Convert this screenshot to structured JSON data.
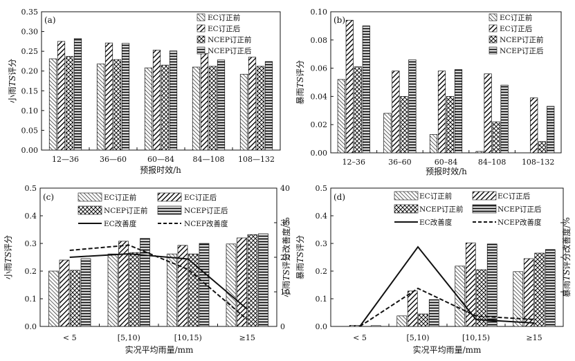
{
  "colors": {
    "ink": "#111111",
    "background": "#ffffff"
  },
  "chart_data": [
    {
      "panel": "(a)",
      "type": "bar",
      "ylabel_parts": [
        "小雨",
        "TS",
        "评分"
      ],
      "xlabel": "预报时效/h",
      "categories": [
        "12—36",
        "36—60",
        "60—84",
        "84—108",
        "108—132"
      ],
      "ylim": [
        0,
        0.35
      ],
      "yticks": [
        "0.00",
        "0.05",
        "0.10",
        "0.15",
        "0.20",
        "0.25",
        "0.30",
        "0.35"
      ],
      "series": [
        {
          "name": "EC订正前",
          "pattern": "bs",
          "values": [
            0.231,
            0.218,
            0.208,
            0.21,
            0.192
          ]
        },
        {
          "name": "EC订正后",
          "pattern": "fs",
          "values": [
            0.275,
            0.271,
            0.253,
            0.244,
            0.235
          ]
        },
        {
          "name": "NCEP订正前",
          "pattern": "xh",
          "values": [
            0.237,
            0.229,
            0.215,
            0.212,
            0.212
          ]
        },
        {
          "name": "NCEP订正后",
          "pattern": "hz",
          "values": [
            0.282,
            0.27,
            0.251,
            0.228,
            0.224
          ]
        }
      ],
      "legend_position": "top-right"
    },
    {
      "panel": "(b)",
      "type": "bar",
      "ylabel_parts": [
        "暴雨",
        "TS",
        "评分"
      ],
      "xlabel": "预报时效/h",
      "categories": [
        "12–36",
        "36–60",
        "60–84",
        "84–108",
        "108–132"
      ],
      "ylim": [
        0,
        0.1
      ],
      "yticks": [
        "0.00",
        "0.02",
        "0.04",
        "0.06",
        "0.08",
        "0.10"
      ],
      "series": [
        {
          "name": "EC订正前",
          "pattern": "bs",
          "values": [
            0.052,
            0.028,
            0.013,
            0.001,
            0.0
          ]
        },
        {
          "name": "EC订正后",
          "pattern": "fs",
          "values": [
            0.094,
            0.058,
            0.058,
            0.056,
            0.039
          ]
        },
        {
          "name": "NCEP订正前",
          "pattern": "xh",
          "values": [
            0.061,
            0.04,
            0.04,
            0.022,
            0.008
          ]
        },
        {
          "name": "NCEP订正后",
          "pattern": "hz",
          "values": [
            0.09,
            0.066,
            0.059,
            0.048,
            0.033
          ]
        }
      ],
      "legend_position": "top-right"
    },
    {
      "panel": "(c)",
      "type": "bar+line",
      "ylabel_parts": [
        "小雨",
        "TS",
        "评分"
      ],
      "y2label_parts": [
        "小雨",
        "TS",
        "评分改善度/%"
      ],
      "xlabel": "实况平均雨量/mm",
      "categories": [
        "< 5",
        "[5,10)",
        "[10,15)",
        "≥15"
      ],
      "ylim": [
        0,
        0.5
      ],
      "yticks": [
        "0.0",
        "0.1",
        "0.2",
        "0.3",
        "0.4",
        "0.5"
      ],
      "y2lim": [
        0,
        40
      ],
      "y2ticks": [
        "0",
        "10",
        "20",
        "30",
        "40"
      ],
      "series": [
        {
          "name": "EC订正前",
          "pattern": "bs",
          "values": [
            0.2,
            0.262,
            0.262,
            0.298
          ]
        },
        {
          "name": "EC订正后",
          "pattern": "fs",
          "values": [
            0.24,
            0.308,
            0.293,
            0.32
          ]
        },
        {
          "name": "NCEP订正前",
          "pattern": "xh",
          "values": [
            0.203,
            0.267,
            0.262,
            0.332
          ]
        },
        {
          "name": "NCEP订正后",
          "pattern": "hz",
          "values": [
            0.245,
            0.318,
            0.3,
            0.335
          ]
        }
      ],
      "lines": [
        {
          "name": "EC改善度",
          "style": "solid",
          "values": [
            20,
            21,
            19.5,
            5
          ]
        },
        {
          "name": "NCEP改善度",
          "style": "dashed",
          "values": [
            22,
            23.5,
            16.5,
            2
          ]
        }
      ],
      "legend_position": "top"
    },
    {
      "panel": "(d)",
      "type": "bar+line",
      "ylabel_parts": [
        "暴雨",
        "TS",
        "评分"
      ],
      "y2label_parts": [
        "暴雨",
        "TS",
        "评分改善度/%"
      ],
      "xlabel": "实况平均雨量/mm",
      "categories": [
        "< 5",
        "[5,10)",
        "[10,15)",
        "≥15"
      ],
      "ylim": [
        0,
        0.5
      ],
      "yticks": [
        "0.0",
        "0.1",
        "0.2",
        "0.3",
        "0.4",
        "0.5"
      ],
      "y2lim": [
        0,
        40
      ],
      "series": [
        {
          "name": "EC订正前",
          "pattern": "bs",
          "values": [
            0.0,
            0.038,
            0.218,
            0.198
          ]
        },
        {
          "name": "EC订正后",
          "pattern": "fs",
          "values": [
            0.004,
            0.128,
            0.302,
            0.245
          ]
        },
        {
          "name": "NCEP订正前",
          "pattern": "xh",
          "values": [
            0.0,
            0.045,
            0.205,
            0.265
          ]
        },
        {
          "name": "NCEP订正后",
          "pattern": "hz",
          "values": [
            0.003,
            0.097,
            0.298,
            0.278
          ]
        }
      ],
      "lines": [
        {
          "name": "EC改善度",
          "style": "solid",
          "values": [
            0,
            23,
            2,
            1
          ]
        },
        {
          "name": "NCEP改善度",
          "style": "dashed",
          "values": [
            0,
            11,
            3,
            2
          ]
        }
      ],
      "legend_position": "top"
    }
  ]
}
